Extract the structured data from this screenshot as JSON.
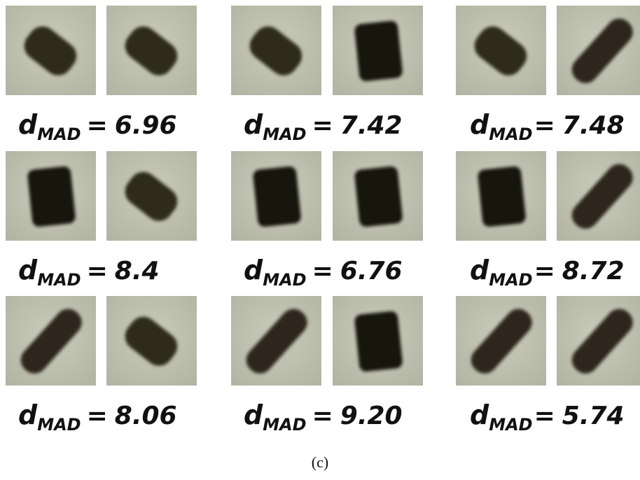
{
  "figure": {
    "label_symbol": "d",
    "label_subscript": "MAD",
    "label_operator": "=",
    "cells": [
      {
        "value": "6.96"
      },
      {
        "value": "7.42"
      },
      {
        "value": "7.48"
      },
      {
        "value": "8.4"
      },
      {
        "value": "6.76"
      },
      {
        "value": "8.72"
      },
      {
        "value": "8.06"
      },
      {
        "value": "9.20"
      },
      {
        "value": "5.74"
      }
    ],
    "caption": "(c)"
  }
}
